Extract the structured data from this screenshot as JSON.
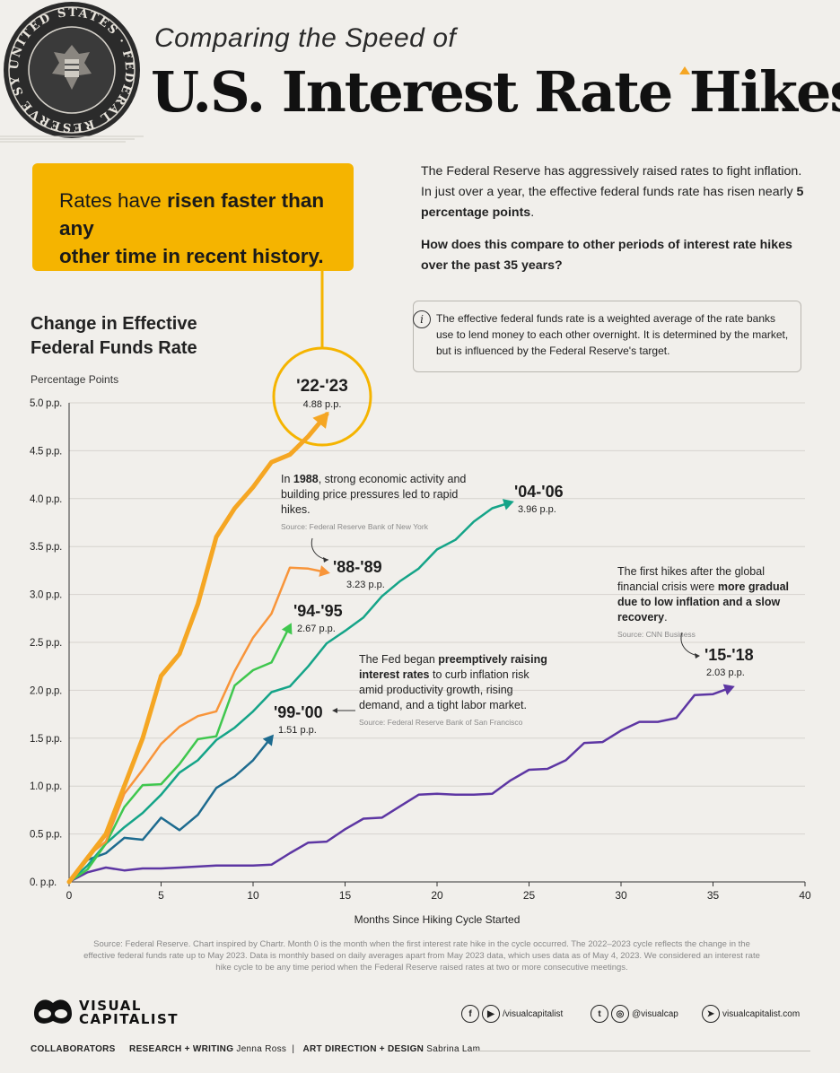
{
  "header": {
    "kicker": "Comparing the Speed of",
    "title": "U.S. Interest Rate Hikes",
    "seal_text": "UNITED STATES · FEDERAL RESERVE SYSTEM"
  },
  "callout": {
    "line1_pre": "Rates have ",
    "line1_bold": "risen faster than any",
    "line2": "other time in recent history",
    "line2_end": "."
  },
  "intro": {
    "text1": "The Federal Reserve has aggressively raised rates to fight inflation. In just over a year, the effective federal funds rate has risen nearly ",
    "text1_bold": "5 percentage points",
    "text1_end": ".",
    "question": "How does this compare to other periods of interest rate hikes over the past 35 years?"
  },
  "info": {
    "icon": "i",
    "text": "The effective federal funds rate is a weighted average of the rate banks use to lend money to each other overnight. It is determined by the market, but is influenced by the Federal Reserve's target."
  },
  "chart_title": {
    "line1": "Change in Effective",
    "line2": "Federal Funds Rate",
    "unit": "Percentage Points"
  },
  "chart_data": {
    "type": "line",
    "xlabel": "Months Since Hiking Cycle Started",
    "ylabel": "Percentage Points",
    "xlim": [
      0,
      40
    ],
    "ylim": [
      0,
      5.0
    ],
    "x_ticks": [
      0,
      5,
      10,
      15,
      20,
      25,
      30,
      35,
      40
    ],
    "y_ticks": [
      0,
      0.5,
      1.0,
      1.5,
      2.0,
      2.5,
      3.0,
      3.5,
      4.0,
      4.5,
      5.0
    ],
    "y_tick_labels": [
      "0. p.p.",
      "0.5 p.p.",
      "1.0 p.p.",
      "1.5 p.p.",
      "2.0 p.p.",
      "2.5 p.p.",
      "3.0 p.p.",
      "3.5 p.p.",
      "4.0 p.p.",
      "4.5 p.p.",
      "5.0 p.p."
    ],
    "grid": true,
    "series": [
      {
        "name": "'22-'23",
        "value_label": "4.88 p.p.",
        "color": "#f5a623",
        "x": [
          0,
          1,
          2,
          3,
          4,
          5,
          6,
          7,
          8,
          9,
          10,
          11,
          12,
          13,
          14
        ],
        "y": [
          0,
          0.25,
          0.5,
          1.0,
          1.5,
          2.15,
          2.38,
          2.9,
          3.6,
          3.9,
          4.12,
          4.38,
          4.46,
          4.65,
          4.88
        ]
      },
      {
        "name": "'88-'89",
        "value_label": "3.23 p.p.",
        "color": "#f8953a",
        "x": [
          0,
          1,
          2,
          3,
          4,
          5,
          6,
          7,
          8,
          9,
          10,
          11,
          12,
          13,
          14
        ],
        "y": [
          0,
          0.27,
          0.42,
          0.92,
          1.17,
          1.44,
          1.62,
          1.73,
          1.78,
          2.2,
          2.55,
          2.8,
          3.28,
          3.27,
          3.23
        ]
      },
      {
        "name": "'94-'95",
        "value_label": "2.67 p.p.",
        "color": "#3fc74e",
        "x": [
          0,
          1,
          2,
          3,
          4,
          5,
          6,
          7,
          8,
          9,
          10,
          11,
          12
        ],
        "y": [
          0,
          0.13,
          0.4,
          0.78,
          1.01,
          1.02,
          1.23,
          1.49,
          1.52,
          2.05,
          2.21,
          2.29,
          2.67
        ]
      },
      {
        "name": "'04-'06",
        "value_label": "3.96 p.p.",
        "color": "#15a488",
        "x": [
          0,
          1,
          2,
          3,
          4,
          5,
          6,
          7,
          8,
          9,
          10,
          11,
          12,
          13,
          14,
          15,
          16,
          17,
          18,
          19,
          20,
          21,
          22,
          23,
          24
        ],
        "y": [
          0,
          0.17,
          0.4,
          0.57,
          0.72,
          0.91,
          1.14,
          1.27,
          1.48,
          1.61,
          1.78,
          1.98,
          2.04,
          2.25,
          2.49,
          2.62,
          2.76,
          2.98,
          3.14,
          3.27,
          3.47,
          3.57,
          3.76,
          3.9,
          3.96
        ]
      },
      {
        "name": "'99-'00",
        "value_label": "1.51 p.p.",
        "color": "#1d6b8f",
        "x": [
          0,
          1,
          2,
          3,
          4,
          5,
          6,
          7,
          8,
          9,
          10,
          11
        ],
        "y": [
          0,
          0.23,
          0.3,
          0.46,
          0.44,
          0.67,
          0.54,
          0.7,
          0.98,
          1.1,
          1.27,
          1.51
        ]
      },
      {
        "name": "'15-'18",
        "value_label": "2.03 p.p.",
        "color": "#5d36a3",
        "x": [
          0,
          1,
          2,
          3,
          4,
          5,
          6,
          7,
          8,
          9,
          10,
          11,
          12,
          13,
          14,
          15,
          16,
          17,
          18,
          19,
          20,
          21,
          22,
          23,
          24,
          25,
          26,
          27,
          28,
          29,
          30,
          31,
          32,
          33,
          34,
          35,
          36
        ],
        "y": [
          0,
          0.1,
          0.15,
          0.12,
          0.14,
          0.14,
          0.15,
          0.16,
          0.17,
          0.17,
          0.17,
          0.18,
          0.3,
          0.41,
          0.42,
          0.55,
          0.66,
          0.67,
          0.79,
          0.91,
          0.92,
          0.91,
          0.91,
          0.92,
          1.06,
          1.17,
          1.18,
          1.27,
          1.45,
          1.46,
          1.58,
          1.67,
          1.67,
          1.71,
          1.95,
          1.96,
          2.03
        ]
      }
    ],
    "annotations": [
      {
        "id": "a88",
        "pre": "In ",
        "bold": "1988",
        "text": ", strong economic activity and building price pressures led to rapid hikes.",
        "source": "Source: Federal Reserve Bank of New York"
      },
      {
        "id": "a99",
        "pre": "The Fed began ",
        "bold": "preemptively raising interest rates",
        "text": " to curb inflation risk amid productivity growth, rising demand, and a tight labor market.",
        "source": "Source: Federal Reserve Bank of San Francisco"
      },
      {
        "id": "a15",
        "pre": "The first hikes after the global financial crisis were ",
        "bold": "more gradual due to low inflation and a slow recovery",
        "text": ".",
        "source": "Source: CNN Business"
      }
    ]
  },
  "footer": {
    "source": "Source: Federal Reserve. Chart inspired by Chartr. Month 0 is the month when the first interest rate hike in the cycle occurred. The 2022–2023 cycle reflects the change in the effective federal funds rate up to May 2023. Data is monthly based on daily averages apart from May 2023 data, which uses data as of May 4, 2023. We considered an interest rate hike cycle to be any time period when the Federal Reserve raised rates at two or more consecutive meetings.",
    "logo_line1": "VISUAL",
    "logo_line2": "CAPITALIST",
    "social1": "/visualcapitalist",
    "social2": "@visualcap",
    "social3": "visualcapitalist.com",
    "collaborators": "COLLABORATORS",
    "research_label": "RESEARCH + WRITING",
    "research_name": "Jenna Ross",
    "design_label": "ART DIRECTION + DESIGN",
    "design_name": "Sabrina Lam"
  }
}
